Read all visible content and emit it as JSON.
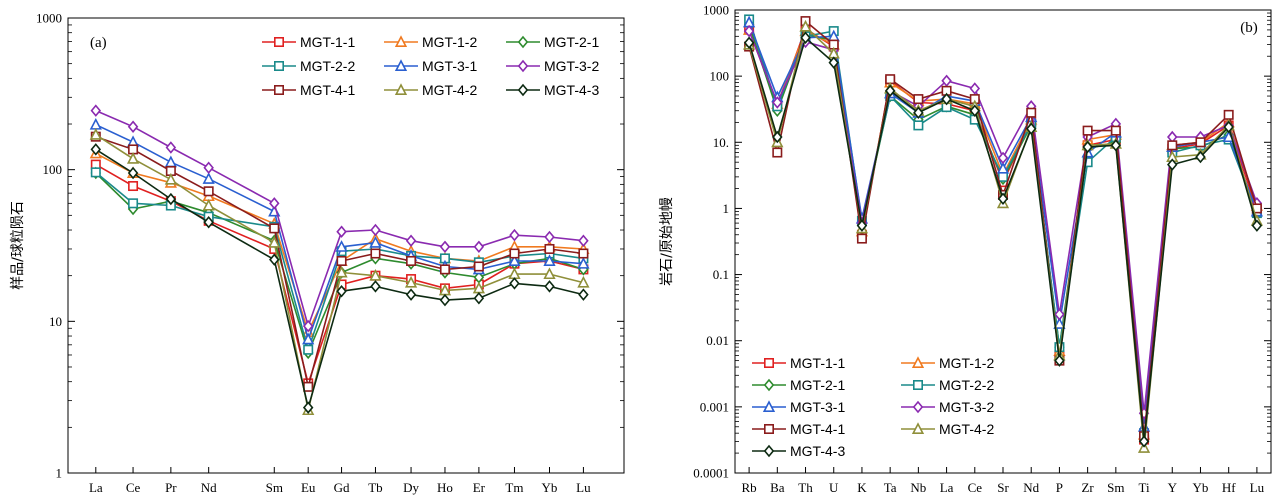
{
  "chart_data": [
    {
      "panel": "(a)",
      "type": "line",
      "ylabel": "样品/球粒陨石",
      "yscale": "log",
      "ylim": [
        1,
        1000
      ],
      "yticks": [
        "1",
        "10",
        "100",
        "1000"
      ],
      "categories": [
        "La",
        "Ce",
        "Pr",
        "Nd",
        "Sm",
        "Eu",
        "Gd",
        "Tb",
        "Dy",
        "Ho",
        "Er",
        "Tm",
        "Yb",
        "Lu"
      ],
      "category_gap_after": "Nd",
      "legend_position": "top-right",
      "series": [
        {
          "name": "MGT-1-1",
          "color": "#e02020",
          "marker": "square",
          "values": [
            108,
            78,
            62,
            46,
            30,
            3.9,
            17.5,
            20,
            19,
            16.5,
            17.5,
            24,
            25,
            22
          ]
        },
        {
          "name": "MGT-1-2",
          "color": "#f07a20",
          "marker": "triangle",
          "values": [
            128,
            95,
            82,
            67,
            44,
            8.5,
            25,
            35,
            29,
            26,
            25,
            31,
            31,
            30
          ]
        },
        {
          "name": "MGT-2-1",
          "color": "#2e8b2e",
          "marker": "diamond",
          "values": [
            95,
            55,
            62,
            52,
            34,
            6.2,
            21,
            26,
            24,
            21,
            19.5,
            24,
            26,
            22
          ]
        },
        {
          "name": "MGT-2-2",
          "color": "#1a8a8a",
          "marker": "square",
          "values": [
            96,
            60,
            58,
            49,
            42,
            6.5,
            29,
            30,
            27,
            26,
            24.5,
            27,
            28,
            26
          ]
        },
        {
          "name": "MGT-3-1",
          "color": "#2a5fd0",
          "marker": "triangle",
          "values": [
            198,
            152,
            112,
            87,
            53,
            7.6,
            31,
            33,
            27,
            23,
            22,
            25,
            25,
            24
          ]
        },
        {
          "name": "MGT-3-2",
          "color": "#8a2ab0",
          "marker": "diamond",
          "values": [
            245,
            192,
            140,
            103,
            60,
            9.3,
            39,
            40,
            34,
            31,
            31,
            37,
            36,
            34
          ]
        },
        {
          "name": "MGT-4-1",
          "color": "#8a1c1c",
          "marker": "square",
          "values": [
            165,
            136,
            98,
            72,
            41,
            3.7,
            25,
            28,
            25,
            22,
            23,
            28,
            30,
            28
          ]
        },
        {
          "name": "MGT-4-2",
          "color": "#8f8f3a",
          "marker": "triangle",
          "values": [
            170,
            118,
            86,
            58,
            33,
            2.6,
            21,
            20,
            18,
            16,
            16.5,
            20.5,
            20.5,
            18
          ]
        },
        {
          "name": "MGT-4-3",
          "color": "#0d2a12",
          "marker": "diamond",
          "values": [
            136,
            95,
            64,
            45,
            25.5,
            2.7,
            15.8,
            17,
            15,
            13.8,
            14.2,
            17.8,
            17,
            15
          ]
        }
      ]
    },
    {
      "panel": "(b)",
      "type": "line",
      "ylabel": "岩石/原始地幔",
      "yscale": "log",
      "ylim": [
        0.0001,
        1000
      ],
      "yticks": [
        "0.0001",
        "0.001",
        "0.01",
        "0.1",
        "1",
        "10.",
        "100",
        "1000"
      ],
      "categories": [
        "Rb",
        "Ba",
        "Th",
        "U",
        "K",
        "Ta",
        "Nb",
        "La",
        "Ce",
        "Sr",
        "Nd",
        "P",
        "Zr",
        "Sm",
        "Ti",
        "Y",
        "Yb",
        "Hf",
        "Lu"
      ],
      "legend_position": "bottom-left",
      "series": [
        {
          "name": "MGT-1-1",
          "color": "#e02020",
          "marker": "square",
          "values": [
            520,
            35,
            520,
            280,
            0.4,
            85,
            40,
            38,
            30,
            2.5,
            20,
            0.006,
            9,
            11,
            0.00032,
            8,
            9.5,
            18,
            0.95
          ]
        },
        {
          "name": "MGT-1-2",
          "color": "#f07a20",
          "marker": "triangle",
          "values": [
            500,
            38,
            480,
            300,
            0.45,
            80,
            42,
            45,
            38,
            3.2,
            22,
            0.007,
            11,
            13,
            0.00038,
            9,
            10,
            20,
            1.1
          ]
        },
        {
          "name": "MGT-2-1",
          "color": "#2e8b2e",
          "marker": "diamond",
          "values": [
            600,
            30,
            420,
            350,
            0.6,
            50,
            22,
            35,
            26,
            2.8,
            18,
            0.008,
            8,
            10,
            0.00035,
            8,
            8.5,
            13,
            0.8
          ]
        },
        {
          "name": "MGT-2-2",
          "color": "#1a8a8a",
          "marker": "square",
          "values": [
            720,
            35,
            400,
            480,
            0.65,
            50,
            18,
            34,
            22,
            3.0,
            19,
            0.008,
            5,
            12,
            0.0004,
            7,
            9,
            11,
            0.85
          ]
        },
        {
          "name": "MGT-3-1",
          "color": "#2a5fd0",
          "marker": "triangle",
          "values": [
            650,
            48,
            380,
            400,
            0.7,
            55,
            28,
            50,
            42,
            4.0,
            24,
            0.018,
            7,
            14,
            0.0005,
            8.5,
            10,
            12,
            0.9
          ]
        },
        {
          "name": "MGT-3-2",
          "color": "#8a2ab0",
          "marker": "diamond",
          "values": [
            480,
            40,
            330,
            250,
            0.6,
            60,
            35,
            85,
            65,
            5.8,
            35,
            0.025,
            12,
            19,
            0.0008,
            12,
            12,
            18,
            1.2
          ]
        },
        {
          "name": "MGT-4-1",
          "color": "#8a1c1c",
          "marker": "square",
          "values": [
            280,
            7,
            680,
            300,
            0.35,
            90,
            45,
            60,
            45,
            1.6,
            28,
            0.005,
            15,
            15,
            0.00036,
            9,
            10,
            26,
            1.0
          ]
        },
        {
          "name": "MGT-4-2",
          "color": "#8f8f3a",
          "marker": "triangle",
          "values": [
            300,
            10,
            560,
            220,
            0.5,
            65,
            30,
            45,
            35,
            1.2,
            17,
            0.006,
            9,
            9.5,
            0.00024,
            6,
            6.5,
            18,
            0.65
          ]
        },
        {
          "name": "MGT-4-3",
          "color": "#0d2a12",
          "marker": "diamond",
          "values": [
            320,
            12,
            380,
            160,
            0.55,
            60,
            28,
            45,
            30,
            1.4,
            16,
            0.005,
            8.5,
            9,
            0.0003,
            4.6,
            6,
            17,
            0.55
          ]
        }
      ]
    }
  ]
}
